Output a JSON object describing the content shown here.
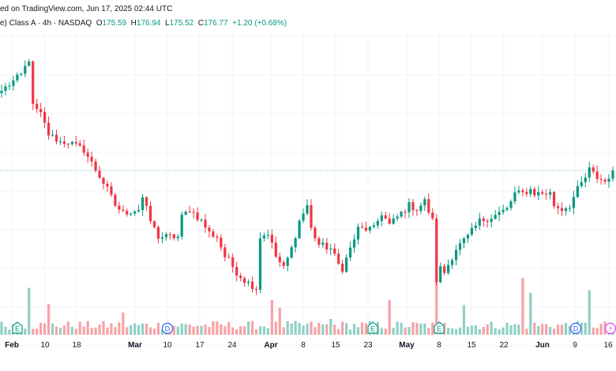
{
  "header": {
    "published_line": "ed on TradingView.com, Jun 17, 2025 02:44 UTC",
    "symbol_line": "e) Class A · 4h · NASDAQ",
    "ohlc": {
      "o_label": "O",
      "o": "175.59",
      "h_label": "H",
      "h": "176.94",
      "l_label": "L",
      "l": "175.52",
      "c_label": "C",
      "c": "176.77",
      "change": "+1.20 (+0.68%)"
    }
  },
  "colors": {
    "up": "#089981",
    "down": "#f23645",
    "vol_up": "#8fd0c6",
    "vol_down": "#f5a3a7",
    "grid": "#f0f3fa",
    "axis_text": "#131722",
    "last_price_line": "#089981"
  },
  "chart_data": {
    "type": "candlestick",
    "interval": "4h",
    "grid": true,
    "y_axis": "hidden",
    "last_price": 176.77,
    "x_ticks": [
      "Feb",
      "10",
      "18",
      "Mar",
      "10",
      "17",
      "24",
      "Apr",
      "8",
      "15",
      "23",
      "May",
      "8",
      "15",
      "22",
      "Jun",
      "9",
      "16"
    ],
    "event_markers": [
      {
        "type": "E",
        "label": "E",
        "tick": "Feb"
      },
      {
        "type": "D",
        "label": "D",
        "tick": "10"
      },
      {
        "type": "E",
        "label": "E",
        "tick": "23"
      },
      {
        "type": "E",
        "label": "E",
        "tick": "8"
      },
      {
        "type": "D",
        "label": "D",
        "tick": "9"
      },
      {
        "type": "S",
        "label": "⚡",
        "tick": "16"
      }
    ],
    "waypoints": [
      [
        0,
        197,
        198
      ],
      [
        5,
        201,
        204
      ],
      [
        7,
        205,
        206
      ],
      [
        8,
        193,
        193
      ],
      [
        10,
        191,
        190
      ],
      [
        12,
        186,
        185
      ],
      [
        15,
        184,
        183
      ],
      [
        17,
        184,
        184
      ],
      [
        21,
        182,
        182
      ],
      [
        24,
        177,
        177
      ],
      [
        27,
        172,
        172
      ],
      [
        29,
        168,
        168
      ],
      [
        31,
        166,
        166
      ],
      [
        35,
        167,
        167
      ],
      [
        36,
        170,
        170
      ],
      [
        38,
        164,
        164
      ],
      [
        40,
        160,
        160
      ],
      [
        45,
        160,
        160
      ],
      [
        46,
        165,
        165
      ],
      [
        48,
        167,
        167
      ],
      [
        51,
        164,
        164
      ],
      [
        53,
        161,
        161
      ],
      [
        55,
        160,
        160
      ],
      [
        57,
        155,
        155
      ],
      [
        58,
        154,
        154
      ],
      [
        60,
        151,
        151
      ],
      [
        62,
        149,
        149
      ],
      [
        65,
        147,
        147
      ],
      [
        66,
        160,
        160
      ],
      [
        68,
        161,
        161
      ],
      [
        70,
        155,
        155
      ],
      [
        72,
        152,
        152
      ],
      [
        74,
        157,
        157
      ],
      [
        76,
        164,
        164
      ],
      [
        78,
        168,
        168
      ],
      [
        79,
        162,
        162
      ],
      [
        81,
        158,
        158
      ],
      [
        84,
        157,
        157
      ],
      [
        86,
        153,
        153
      ],
      [
        87,
        152,
        152
      ],
      [
        89,
        157,
        157
      ],
      [
        91,
        162,
        162
      ],
      [
        95,
        162,
        162
      ],
      [
        97,
        166,
        166
      ],
      [
        99,
        163,
        163
      ],
      [
        102,
        166,
        166
      ],
      [
        104,
        168,
        168
      ],
      [
        106,
        167,
        167
      ],
      [
        108,
        169,
        169
      ],
      [
        110,
        164,
        164
      ],
      [
        111,
        149,
        149
      ],
      [
        112,
        152,
        152
      ],
      [
        113,
        151,
        151
      ],
      [
        116,
        157,
        157
      ],
      [
        119,
        160,
        160
      ],
      [
        122,
        164,
        164
      ],
      [
        125,
        165,
        165
      ],
      [
        129,
        167,
        167
      ],
      [
        131,
        171,
        171
      ],
      [
        133,
        171,
        171
      ],
      [
        135,
        172,
        172
      ],
      [
        136,
        171,
        171
      ],
      [
        140,
        171,
        171
      ],
      [
        141,
        168,
        168
      ],
      [
        143,
        167,
        167
      ],
      [
        145,
        168,
        168
      ],
      [
        147,
        172,
        172
      ],
      [
        149,
        175,
        175
      ],
      [
        150,
        177,
        177
      ],
      [
        152,
        175,
        175
      ],
      [
        154,
        174,
        174
      ],
      [
        156,
        176.77,
        176.77
      ]
    ],
    "volume_spikes": [
      [
        7,
        95
      ],
      [
        12,
        62
      ],
      [
        31,
        45
      ],
      [
        69,
        70
      ],
      [
        71,
        55
      ],
      [
        84,
        32
      ],
      [
        99,
        70
      ],
      [
        111,
        120
      ],
      [
        118,
        60
      ],
      [
        133,
        115
      ],
      [
        135,
        85
      ],
      [
        150,
        90
      ]
    ]
  }
}
